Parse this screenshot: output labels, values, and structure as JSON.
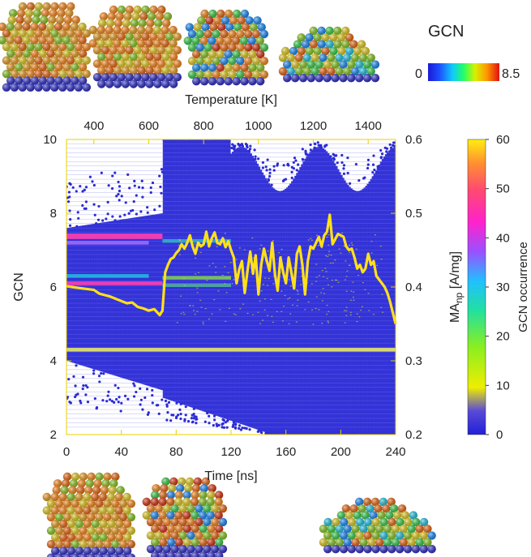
{
  "chart_data": {
    "type": "scatter",
    "x_bottom": {
      "label": "Time [ns]",
      "ticks": [
        "0",
        "40",
        "80",
        "120",
        "160",
        "200",
        "240"
      ],
      "range": [
        0,
        240
      ]
    },
    "x_top": {
      "label": "Temperature [K]",
      "ticks": [
        "400",
        "600",
        "800",
        "1000",
        "1200",
        "1400"
      ],
      "range": [
        300,
        1500
      ]
    },
    "y_left": {
      "label": "GCN",
      "ticks": [
        "2",
        "4",
        "6",
        "8",
        "10"
      ],
      "range": [
        2,
        10
      ]
    },
    "y_right": {
      "label": "MA",
      "label_sub": "np",
      "label_suffix": " [A/mg]",
      "ticks": [
        "0.2",
        "0.3",
        "0.4",
        "0.5",
        "0.6"
      ],
      "range": [
        0.2,
        0.6
      ]
    },
    "colorbar": {
      "label": "GCN occurrence",
      "ticks": [
        "0",
        "10",
        "20",
        "30",
        "40",
        "50",
        "60"
      ],
      "range": [
        0,
        60
      ]
    },
    "gcn_scale": {
      "title": "GCN",
      "min_label": "0",
      "max_label": "8.5"
    },
    "series": [
      {
        "name": "",
        "color": "#ffe01a",
        "axis": "right",
        "x": [
          0,
          4,
          8,
          12,
          16,
          20,
          24,
          28,
          32,
          36,
          40,
          44,
          48,
          52,
          56,
          60,
          64,
          68,
          70,
          72,
          74,
          76,
          78,
          80,
          82,
          84,
          86,
          88,
          90,
          92,
          94,
          96,
          98,
          100,
          102,
          104,
          106,
          108,
          110,
          112,
          114,
          116,
          118,
          120,
          122,
          124,
          126,
          128,
          130,
          132,
          134,
          136,
          138,
          140,
          142,
          144,
          146,
          148,
          150,
          152,
          154,
          156,
          158,
          160,
          162,
          164,
          166,
          168,
          170,
          172,
          174,
          176,
          178,
          180,
          182,
          184,
          186,
          188,
          190,
          192,
          194,
          196,
          198,
          200,
          202,
          204,
          206,
          208,
          210,
          212,
          214,
          216,
          218,
          220,
          222,
          224,
          226,
          228,
          230,
          232,
          234,
          236,
          238,
          240
        ],
        "y": [
          0.401,
          0.4,
          0.399,
          0.398,
          0.397,
          0.396,
          0.391,
          0.389,
          0.387,
          0.384,
          0.381,
          0.378,
          0.379,
          0.373,
          0.371,
          0.368,
          0.37,
          0.362,
          0.368,
          0.42,
          0.43,
          0.438,
          0.44,
          0.446,
          0.45,
          0.458,
          0.452,
          0.46,
          0.47,
          0.455,
          0.445,
          0.46,
          0.455,
          0.458,
          0.475,
          0.455,
          0.466,
          0.474,
          0.46,
          0.458,
          0.466,
          0.454,
          0.462,
          0.45,
          0.44,
          0.405,
          0.424,
          0.435,
          0.392,
          0.422,
          0.448,
          0.418,
          0.443,
          0.39,
          0.43,
          0.452,
          0.436,
          0.422,
          0.46,
          0.418,
          0.395,
          0.44,
          0.42,
          0.405,
          0.44,
          0.42,
          0.398,
          0.445,
          0.455,
          0.43,
          0.39,
          0.435,
          0.455,
          0.452,
          0.46,
          0.468,
          0.455,
          0.47,
          0.475,
          0.498,
          0.458,
          0.465,
          0.472,
          0.47,
          0.468,
          0.455,
          0.45,
          0.452,
          0.44,
          0.425,
          0.43,
          0.42,
          0.425,
          0.445,
          0.43,
          0.435,
          0.415,
          0.41,
          0.405,
          0.4,
          0.392,
          0.38,
          0.365,
          0.35
        ]
      }
    ],
    "grid": false
  }
}
